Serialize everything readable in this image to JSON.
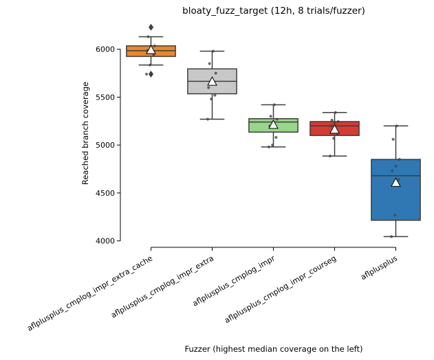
{
  "chart_data": {
    "type": "box",
    "title": "bloaty_fuzz_target (12h, 8 trials/fuzzer)",
    "xlabel": "Fuzzer (highest median coverage on the left)",
    "ylabel": "Reached branch coverage",
    "ylim": [
      3990,
      6270
    ],
    "yticks": [
      4000,
      4500,
      5000,
      5500,
      6000
    ],
    "grid": false,
    "legend": "none",
    "categories": [
      "aflplusplus_cmplog_impr_extra_cache",
      "aflplusplus_cmplog_impr_extra",
      "aflplusplus_cmplog_impr",
      "aflplusplus_cmplog_impr_courseg",
      "aflplusplus"
    ],
    "boxes": [
      {
        "name": "aflplusplus_cmplog_impr_extra_cache",
        "color": "#e8872b",
        "whisker_low": 5835,
        "q1": 5925,
        "median": 5985,
        "q3": 6035,
        "whisker_high": 6130,
        "mean": 5990,
        "fliers": [
          5740,
          6230
        ],
        "points": [
          5740,
          5835,
          5940,
          5985,
          6000,
          6035,
          6130,
          6230
        ]
      },
      {
        "name": "aflplusplus_cmplog_impr_extra",
        "color": "#c8c8c8",
        "whisker_low": 5270,
        "q1": 5535,
        "median": 5665,
        "q3": 5795,
        "whisker_high": 5980,
        "mean": 5660,
        "fliers": [],
        "points": [
          5270,
          5480,
          5520,
          5600,
          5650,
          5750,
          5850,
          5980
        ]
      },
      {
        "name": "aflplusplus_cmplog_impr",
        "color": "#98d68a",
        "whisker_low": 4980,
        "q1": 5135,
        "median": 5240,
        "q3": 5275,
        "whisker_high": 5420,
        "mean": 5210,
        "fliers": [],
        "points": [
          4980,
          5000,
          5080,
          5200,
          5240,
          5270,
          5300,
          5420
        ]
      },
      {
        "name": "aflplusplus_cmplog_impr_courseg",
        "color": "#d33b33",
        "whisker_low": 4885,
        "q1": 5100,
        "median": 5200,
        "q3": 5245,
        "whisker_high": 5340,
        "mean": 5160,
        "fliers": [],
        "points": [
          4885,
          5070,
          5110,
          5200,
          5230,
          5245,
          5260,
          5340
        ]
      },
      {
        "name": "aflplusplus",
        "color": "#2f78b3",
        "whisker_low": 4045,
        "q1": 4215,
        "median": 4680,
        "q3": 4850,
        "whisker_high": 5200,
        "mean": 4605,
        "fliers": [],
        "points": [
          4045,
          4270,
          4640,
          4730,
          4780,
          4850,
          5060,
          5200
        ]
      }
    ]
  }
}
